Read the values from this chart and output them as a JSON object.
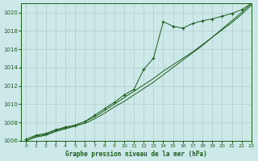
{
  "title": "Graphe pression niveau de la mer (hPa)",
  "xlim": [
    -0.5,
    23
  ],
  "ylim": [
    1006,
    1021
  ],
  "yticks": [
    1006,
    1008,
    1010,
    1012,
    1014,
    1016,
    1018,
    1020
  ],
  "xticks": [
    0,
    1,
    2,
    3,
    4,
    5,
    6,
    7,
    8,
    9,
    10,
    11,
    12,
    13,
    14,
    15,
    16,
    17,
    18,
    19,
    20,
    21,
    22,
    23
  ],
  "background_color": "#cde8e8",
  "plot_bg_color": "#cde8e8",
  "grid_color": "#b0cccc",
  "line_color": "#1a5e1a",
  "line_jagged": [
    1006.2,
    1006.6,
    1006.8,
    1007.2,
    1007.5,
    1007.7,
    1008.1,
    1008.8,
    1009.5,
    1010.2,
    1011.0,
    1011.6,
    1013.8,
    1015.0,
    1019.0,
    1018.5,
    1018.3,
    1018.8,
    1019.1,
    1019.3,
    1019.6,
    1019.9,
    1020.3,
    1021.0
  ],
  "line_smooth1": [
    1006.0,
    1006.5,
    1006.7,
    1007.1,
    1007.4,
    1007.7,
    1008.1,
    1008.6,
    1009.3,
    1010.0,
    1010.7,
    1011.4,
    1012.1,
    1012.8,
    1013.6,
    1014.3,
    1015.0,
    1015.7,
    1016.5,
    1017.3,
    1018.1,
    1018.9,
    1019.8,
    1020.8
  ],
  "line_smooth2": [
    1006.0,
    1006.4,
    1006.6,
    1007.0,
    1007.3,
    1007.6,
    1007.9,
    1008.4,
    1009.0,
    1009.7,
    1010.3,
    1011.0,
    1011.7,
    1012.4,
    1013.2,
    1014.0,
    1014.8,
    1015.6,
    1016.4,
    1017.3,
    1018.2,
    1019.1,
    1020.0,
    1021.0
  ]
}
